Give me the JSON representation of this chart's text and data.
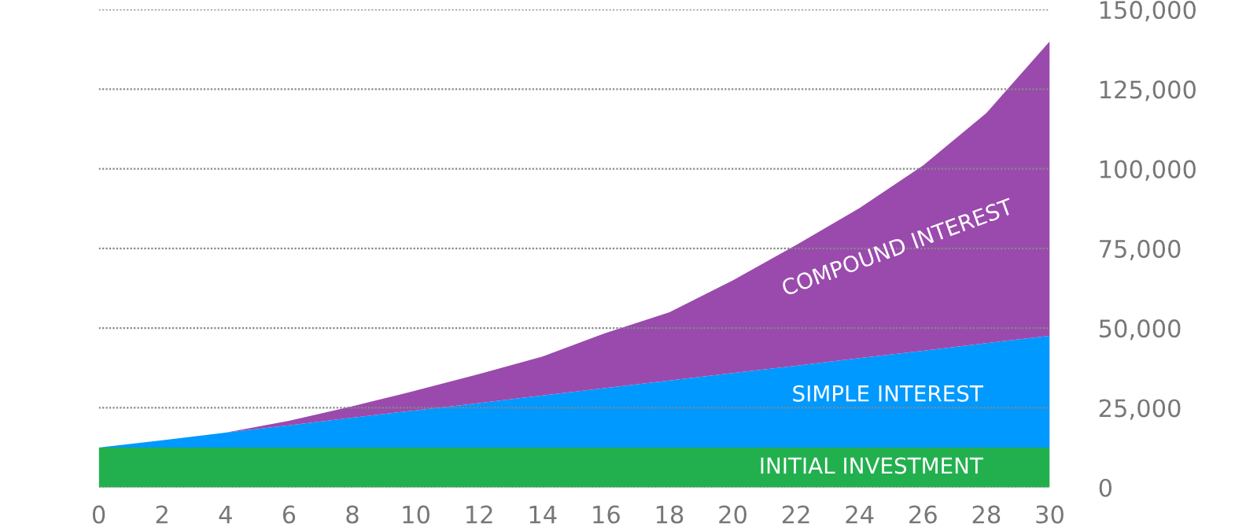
{
  "chart_data": {
    "type": "area",
    "stacked": true,
    "x": [
      0,
      2,
      4,
      6,
      8,
      10,
      12,
      14,
      16,
      18,
      20,
      22,
      24,
      26,
      28,
      30
    ],
    "series": [
      {
        "name": "INITIAL INVESTMENT",
        "color": "#22b04e",
        "values": [
          12500,
          12500,
          12500,
          12500,
          12500,
          12500,
          12500,
          12500,
          12500,
          12500,
          12500,
          12500,
          12500,
          12500,
          12500,
          12500
        ]
      },
      {
        "name": "SIMPLE INTEREST",
        "color": "#0099ff",
        "values": [
          0,
          2300,
          4700,
          7000,
          9400,
          11700,
          14000,
          16400,
          18700,
          21100,
          23400,
          25700,
          28100,
          30400,
          32800,
          35100
        ]
      },
      {
        "name": "COMPOUND INTEREST",
        "color": "#9a4aad",
        "values": [
          0,
          0,
          0,
          1400,
          3600,
          6200,
          9100,
          12200,
          17300,
          21400,
          29100,
          37900,
          47100,
          58100,
          72200,
          92400
        ]
      }
    ],
    "xlim": [
      0,
      30
    ],
    "xticks": [
      0,
      2,
      4,
      6,
      8,
      10,
      12,
      14,
      16,
      18,
      20,
      22,
      24,
      26,
      28,
      30
    ],
    "ylim": [
      0,
      150000
    ],
    "yticks": [
      {
        "value": 0,
        "label": "0"
      },
      {
        "value": 25000,
        "label": "25,000"
      },
      {
        "value": 50000,
        "label": "50,000"
      },
      {
        "value": 75000,
        "label": "75,000"
      },
      {
        "value": 100000,
        "label": "100,000"
      },
      {
        "value": 125000,
        "label": "125,000"
      },
      {
        "value": 150000,
        "label": "150,000"
      }
    ],
    "grid": "y",
    "legend": false
  }
}
